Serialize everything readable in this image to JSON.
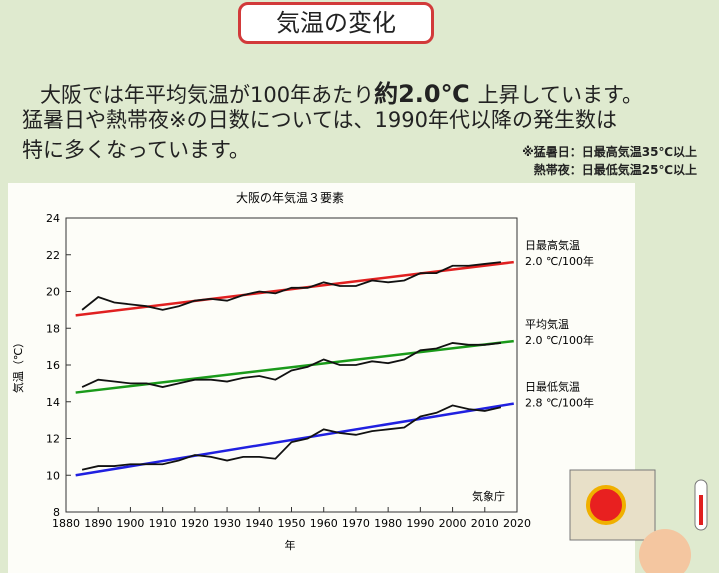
{
  "header": {
    "title": "気温の変化"
  },
  "lead": {
    "before": "大阪では年平均気温が100年あたり",
    "emphasis": "約2.0℃",
    "after": "上昇しています。"
  },
  "lines": [
    "猛暑日や熱帯夜※の日数については、1990年代以降の発生数は",
    "特に多くなっています。"
  ],
  "notes": [
    "※猛暑日：日最高気温35℃以上",
    "熱帯夜：日最低気温25℃以上"
  ],
  "chart_data": {
    "type": "line",
    "title": "大阪の年気温３要素",
    "xlabel": "年",
    "ylabel": "気温（℃）",
    "source": "気象庁",
    "xlim": [
      1880,
      2020
    ],
    "xticks": [
      1880,
      1890,
      1900,
      1910,
      1920,
      1930,
      1940,
      1950,
      1960,
      1970,
      1980,
      1990,
      2000,
      2010,
      2020
    ],
    "ylim": [
      8,
      24
    ],
    "yticks": [
      8,
      10,
      12,
      14,
      16,
      18,
      20,
      22,
      24
    ],
    "series": [
      {
        "name": "日最高気温",
        "rate": "2.0 ℃/100年",
        "color": "#e02020",
        "x": [
          1883,
          2019
        ],
        "values": [
          18.7,
          21.6
        ]
      },
      {
        "name": "平均気温",
        "rate": "2.0 ℃/100年",
        "color": "#1a9a1a",
        "x": [
          1883,
          2019
        ],
        "values": [
          14.5,
          17.3
        ]
      },
      {
        "name": "日最低気温",
        "rate": "2.8 ℃/100年",
        "color": "#2020e0",
        "x": [
          1883,
          2019
        ],
        "values": [
          10.0,
          13.9
        ]
      },
      {
        "color": "#111111",
        "x": [
          1885,
          1890,
          1895,
          1900,
          1905,
          1910,
          1915,
          1920,
          1925,
          1930,
          1935,
          1940,
          1945,
          1950,
          1955,
          1960,
          1965,
          1970,
          1975,
          1980,
          1985,
          1990,
          1995,
          2000,
          2005,
          2010,
          2015
        ],
        "values": [
          19.0,
          19.7,
          19.4,
          19.3,
          19.2,
          19.0,
          19.2,
          19.5,
          19.6,
          19.5,
          19.8,
          20.0,
          19.9,
          20.2,
          20.2,
          20.5,
          20.3,
          20.3,
          20.6,
          20.5,
          20.6,
          21.0,
          21.0,
          21.4,
          21.4,
          21.5,
          21.6
        ]
      },
      {
        "color": "#111111",
        "x": [
          1885,
          1890,
          1895,
          1900,
          1905,
          1910,
          1915,
          1920,
          1925,
          1930,
          1935,
          1940,
          1945,
          1950,
          1955,
          1960,
          1965,
          1970,
          1975,
          1980,
          1985,
          1990,
          1995,
          2000,
          2005,
          2010,
          2015
        ],
        "values": [
          14.8,
          15.2,
          15.1,
          15.0,
          15.0,
          14.8,
          15.0,
          15.2,
          15.2,
          15.1,
          15.3,
          15.4,
          15.2,
          15.7,
          15.9,
          16.3,
          16.0,
          16.0,
          16.2,
          16.1,
          16.3,
          16.8,
          16.9,
          17.2,
          17.1,
          17.1,
          17.2
        ]
      },
      {
        "color": "#111111",
        "x": [
          1885,
          1890,
          1895,
          1900,
          1905,
          1910,
          1915,
          1920,
          1925,
          1930,
          1935,
          1940,
          1945,
          1950,
          1955,
          1960,
          1965,
          1970,
          1975,
          1980,
          1985,
          1990,
          1995,
          2000,
          2005,
          2010,
          2015
        ],
        "values": [
          10.3,
          10.5,
          10.5,
          10.6,
          10.6,
          10.6,
          10.8,
          11.1,
          11.0,
          10.8,
          11.0,
          11.0,
          10.9,
          11.8,
          12.0,
          12.5,
          12.3,
          12.2,
          12.4,
          12.5,
          12.6,
          13.2,
          13.4,
          13.8,
          13.6,
          13.5,
          13.7
        ]
      }
    ]
  }
}
